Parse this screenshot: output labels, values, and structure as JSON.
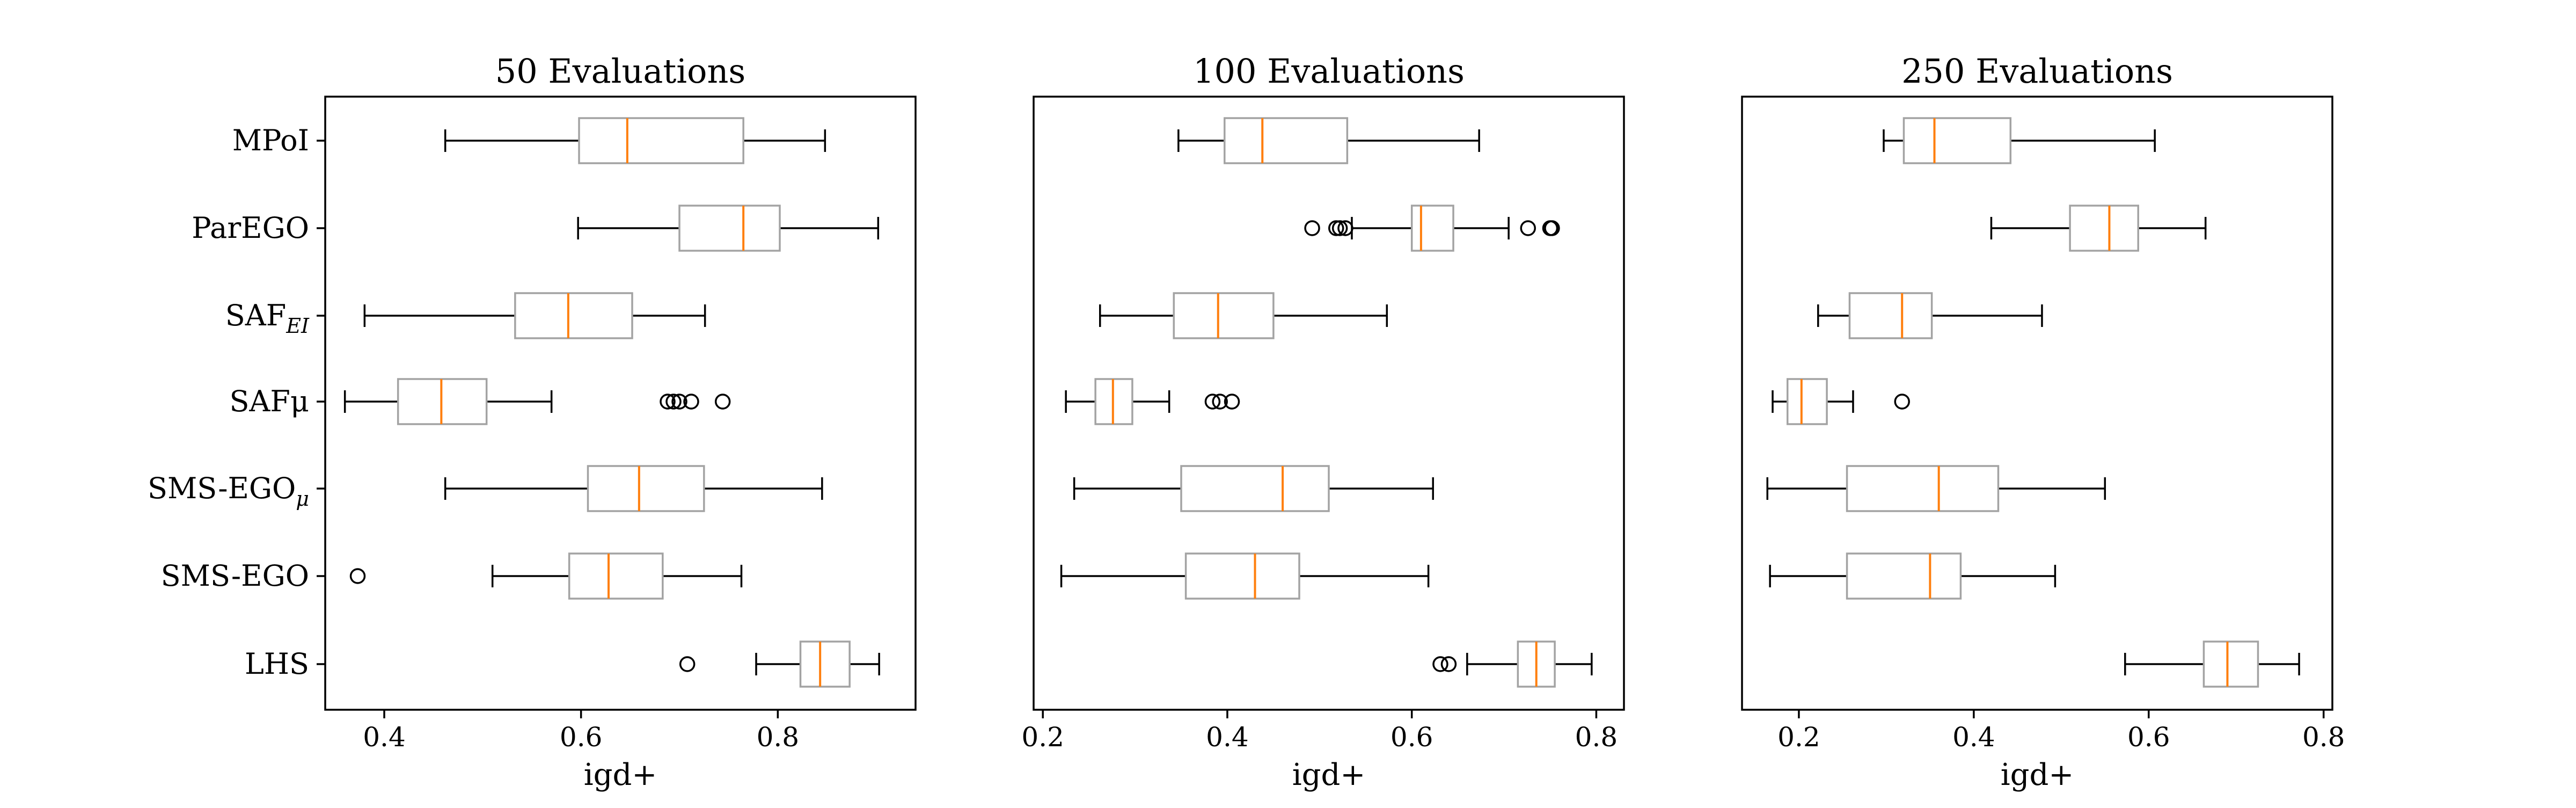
{
  "chart_data": [
    {
      "type": "boxplot",
      "orientation": "horizontal",
      "title": "50 Evaluations",
      "xlabel": "igd+",
      "ylabel": "",
      "xlim": [
        0.34,
        0.94
      ],
      "xticks": [
        0.4,
        0.6,
        0.8
      ],
      "xtick_labels": [
        "0.4",
        "0.6",
        "0.8"
      ],
      "categories": [
        "MPoI",
        "ParEGO",
        "SAF_EI",
        "SAFμ",
        "SMS-EGO_μ",
        "SMS-EGO",
        "LHS"
      ],
      "category_labels": [
        {
          "base": "MPoI",
          "sub": ""
        },
        {
          "base": "ParEGO",
          "sub": ""
        },
        {
          "base": "SAF",
          "sub": "EI"
        },
        {
          "base": "SAFμ",
          "sub": ""
        },
        {
          "base": "SMS-EGO",
          "sub": "μ"
        },
        {
          "base": "SMS-EGO",
          "sub": ""
        },
        {
          "base": "LHS",
          "sub": ""
        }
      ],
      "boxes": [
        {
          "name": "MPoI",
          "whislo": 0.462,
          "q1": 0.598,
          "med": 0.647,
          "q3": 0.765,
          "whishi": 0.848,
          "fliers": []
        },
        {
          "name": "ParEGO",
          "whislo": 0.597,
          "q1": 0.7,
          "med": 0.765,
          "q3": 0.802,
          "whishi": 0.902,
          "fliers": []
        },
        {
          "name": "SAF_EI",
          "whislo": 0.38,
          "q1": 0.533,
          "med": 0.587,
          "q3": 0.652,
          "whishi": 0.726,
          "fliers": []
        },
        {
          "name": "SAFμ",
          "whislo": 0.36,
          "q1": 0.414,
          "med": 0.458,
          "q3": 0.504,
          "whishi": 0.57,
          "fliers": [
            0.688,
            0.694,
            0.7,
            0.712,
            0.744
          ]
        },
        {
          "name": "SMS-EGO_μ",
          "whislo": 0.462,
          "q1": 0.607,
          "med": 0.659,
          "q3": 0.725,
          "whishi": 0.845,
          "fliers": []
        },
        {
          "name": "SMS-EGO",
          "whislo": 0.51,
          "q1": 0.588,
          "med": 0.628,
          "q3": 0.683,
          "whishi": 0.763,
          "fliers": [
            0.373
          ]
        },
        {
          "name": "LHS",
          "whislo": 0.778,
          "q1": 0.823,
          "med": 0.843,
          "q3": 0.873,
          "whishi": 0.903,
          "fliers": [
            0.708
          ]
        }
      ]
    },
    {
      "type": "boxplot",
      "orientation": "horizontal",
      "title": "100 Evaluations",
      "xlabel": "igd+",
      "ylabel": "",
      "xlim": [
        0.19,
        0.83
      ],
      "xticks": [
        0.2,
        0.4,
        0.6,
        0.8
      ],
      "xtick_labels": [
        "0.2",
        "0.4",
        "0.6",
        "0.8"
      ],
      "categories": [
        "MPoI",
        "ParEGO",
        "SAF_EI",
        "SAFμ",
        "SMS-EGO_μ",
        "SMS-EGO",
        "LHS"
      ],
      "boxes": [
        {
          "name": "MPoI",
          "whislo": 0.347,
          "q1": 0.397,
          "med": 0.438,
          "q3": 0.53,
          "whishi": 0.673,
          "fliers": []
        },
        {
          "name": "ParEGO",
          "whislo": 0.535,
          "q1": 0.6,
          "med": 0.61,
          "q3": 0.645,
          "whishi": 0.705,
          "fliers": [
            0.492,
            0.518,
            0.522,
            0.528,
            0.726,
            0.75,
            0.752
          ]
        },
        {
          "name": "SAF_EI",
          "whislo": 0.262,
          "q1": 0.342,
          "med": 0.39,
          "q3": 0.45,
          "whishi": 0.573,
          "fliers": []
        },
        {
          "name": "SAFμ",
          "whislo": 0.225,
          "q1": 0.257,
          "med": 0.276,
          "q3": 0.297,
          "whishi": 0.337,
          "fliers": [
            0.384,
            0.392,
            0.405
          ]
        },
        {
          "name": "SMS-EGO_μ",
          "whislo": 0.234,
          "q1": 0.35,
          "med": 0.46,
          "q3": 0.51,
          "whishi": 0.623,
          "fliers": []
        },
        {
          "name": "SMS-EGO",
          "whislo": 0.22,
          "q1": 0.355,
          "med": 0.43,
          "q3": 0.478,
          "whishi": 0.618,
          "fliers": []
        },
        {
          "name": "LHS",
          "whislo": 0.66,
          "q1": 0.715,
          "med": 0.735,
          "q3": 0.755,
          "whishi": 0.795,
          "fliers": [
            0.631,
            0.64
          ]
        }
      ]
    },
    {
      "type": "boxplot",
      "orientation": "horizontal",
      "title": "250 Evaluations",
      "xlabel": "igd+",
      "ylabel": "",
      "xlim": [
        0.135,
        0.81
      ],
      "xticks": [
        0.2,
        0.4,
        0.6,
        0.8
      ],
      "xtick_labels": [
        "0.2",
        "0.4",
        "0.6",
        "0.8"
      ],
      "categories": [
        "MPoI",
        "ParEGO",
        "SAF_EI",
        "SAFμ",
        "SMS-EGO_μ",
        "SMS-EGO",
        "LHS"
      ],
      "boxes": [
        {
          "name": "MPoI",
          "whislo": 0.297,
          "q1": 0.32,
          "med": 0.355,
          "q3": 0.442,
          "whishi": 0.607,
          "fliers": []
        },
        {
          "name": "ParEGO",
          "whislo": 0.42,
          "q1": 0.51,
          "med": 0.555,
          "q3": 0.588,
          "whishi": 0.665,
          "fliers": []
        },
        {
          "name": "SAF_EI",
          "whislo": 0.222,
          "q1": 0.258,
          "med": 0.318,
          "q3": 0.352,
          "whishi": 0.478,
          "fliers": []
        },
        {
          "name": "SAFμ",
          "whislo": 0.17,
          "q1": 0.187,
          "med": 0.203,
          "q3": 0.232,
          "whishi": 0.262,
          "fliers": [
            0.318
          ]
        },
        {
          "name": "SMS-EGO_μ",
          "whislo": 0.164,
          "q1": 0.255,
          "med": 0.36,
          "q3": 0.428,
          "whishi": 0.55,
          "fliers": []
        },
        {
          "name": "SMS-EGO",
          "whislo": 0.167,
          "q1": 0.255,
          "med": 0.35,
          "q3": 0.385,
          "whishi": 0.493,
          "fliers": []
        },
        {
          "name": "LHS",
          "whislo": 0.573,
          "q1": 0.663,
          "med": 0.69,
          "q3": 0.725,
          "whishi": 0.772,
          "fliers": []
        }
      ]
    }
  ],
  "colors": {
    "box": "#a3a3a3",
    "median": "#ff7f0e",
    "whisker": "#000000",
    "flier": "#000000",
    "frame": "#000000"
  }
}
